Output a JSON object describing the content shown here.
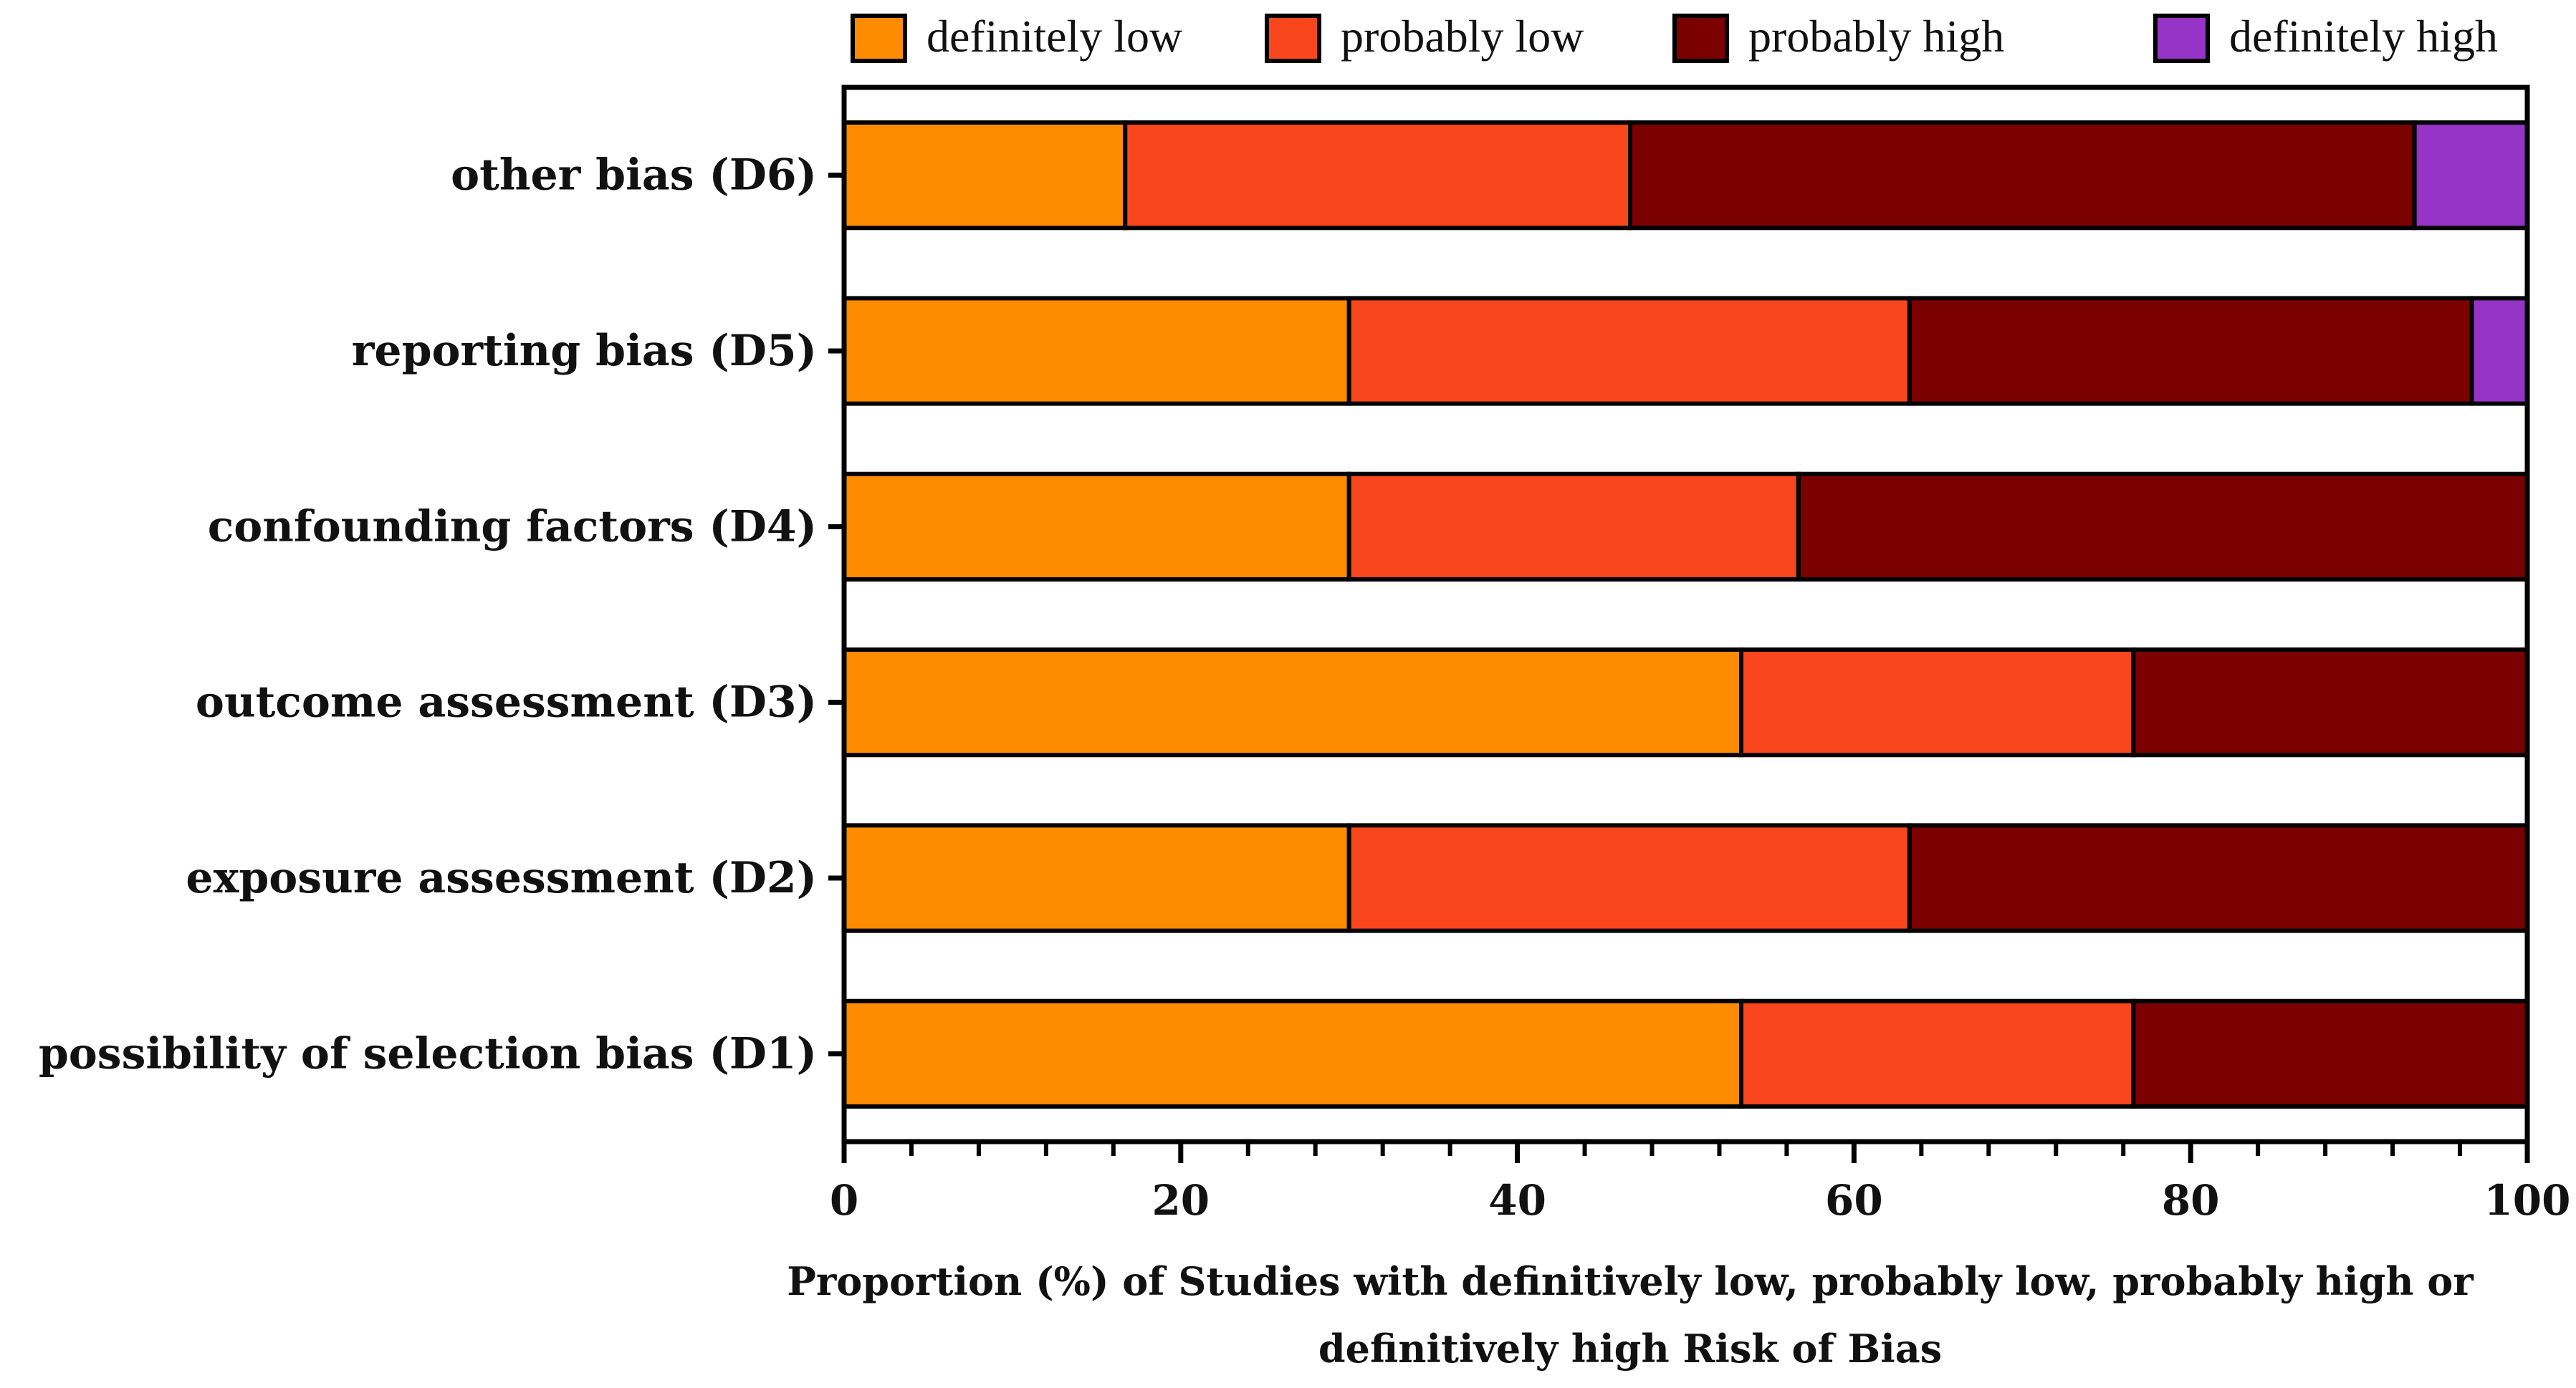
{
  "chart_data": {
    "type": "bar",
    "orientation": "horizontal",
    "stacked": true,
    "categories": [
      "possibility of selection bias (D1)",
      "exposure assessment (D2)",
      "outcome assessment (D3)",
      "confounding factors (D4)",
      "reporting bias (D5)",
      "other bias (D6)"
    ],
    "series": [
      {
        "name": "definitely low",
        "color": "#ff8c00",
        "values": [
          53.3,
          30,
          53.3,
          30,
          30,
          16.7
        ]
      },
      {
        "name": "probably low",
        "color": "#f9461c",
        "values": [
          23.3,
          33.3,
          23.3,
          26.7,
          33.3,
          30
        ]
      },
      {
        "name": "probably high",
        "color": "#7b0000",
        "values": [
          23.4,
          36.7,
          23.4,
          43.3,
          33.4,
          46.6
        ]
      },
      {
        "name": "definitely high",
        "color": "#9534c6",
        "values": [
          0,
          0,
          0,
          0,
          3.3,
          6.7
        ]
      }
    ],
    "xlim": [
      0,
      100
    ],
    "xticks": [
      0,
      20,
      40,
      60,
      80,
      100
    ],
    "xlabel": "Proportion (%) of Studies with definitively low, probably low, probably high or definitively high Risk of Bias",
    "xlabel_lines": [
      "Proportion (%) of Studies with definitively low, probably low, probably high or",
      "definitively high Risk of Bias"
    ],
    "ylabel": "",
    "title": "",
    "legend_position": "top",
    "grid": false
  }
}
